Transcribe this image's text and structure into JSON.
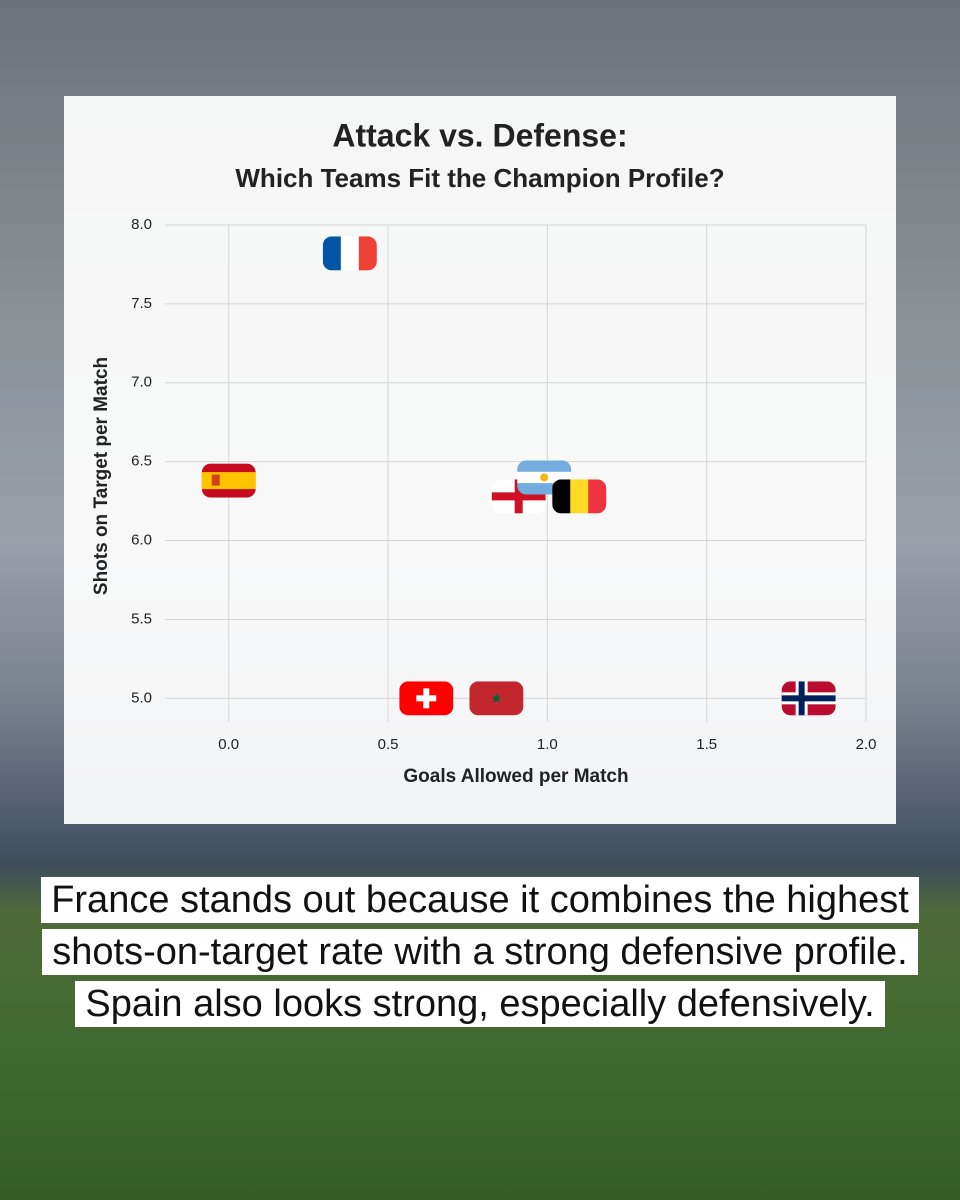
{
  "chart_data": {
    "type": "scatter",
    "title": "Attack vs. Defense:",
    "subtitle": "Which Teams Fit the Champion Profile?",
    "x_label": "Goals Allowed per Match",
    "y_label": "Shots on Target per Match",
    "x": [
      0.38,
      0.0,
      0.91,
      0.99,
      1.1,
      0.62,
      0.84,
      1.82
    ],
    "values": [
      7.82,
      6.38,
      6.28,
      6.4,
      6.28,
      5.0,
      5.0,
      5.0
    ],
    "markers": [
      {
        "kind": "vertical",
        "colors": [
          "#0055a4",
          "#ffffff",
          "#ef4135"
        ]
      },
      {
        "kind": "spain",
        "colors": [
          "#c60b1e",
          "#ffc400"
        ]
      },
      {
        "kind": "cross",
        "colors": [
          "#ffffff",
          "#ce1124"
        ]
      },
      {
        "kind": "horizontal",
        "colors": [
          "#74acdf",
          "#ffffff",
          "#74acdf"
        ]
      },
      {
        "kind": "vertical",
        "colors": [
          "#000000",
          "#fdda24",
          "#ef3340"
        ]
      },
      {
        "kind": "swiss",
        "colors": [
          "#ff0000",
          "#ffffff"
        ]
      },
      {
        "kind": "star",
        "colors": [
          "#c1272d",
          "#006233"
        ]
      },
      {
        "kind": "nordic",
        "colors": [
          "#ba0c2f",
          "#ffffff",
          "#00205b"
        ]
      }
    ],
    "xlim": [
      -0.2,
      2.0
    ],
    "ylim": [
      4.85,
      8.0
    ],
    "xticks": [
      {
        "value": 0,
        "label": "0.0"
      },
      0.5,
      {
        "value": 1,
        "label": "1.0"
      },
      1.5,
      {
        "value": 2,
        "label": "2.0"
      }
    ],
    "yticks": [
      {
        "value": 5,
        "label": "5.0"
      },
      5.5,
      {
        "value": 6,
        "label": "6.0"
      },
      6.5,
      {
        "value": 7,
        "label": "7.0"
      },
      7.5,
      {
        "value": 8,
        "label": "8.0"
      }
    ],
    "grid": true
  },
  "caption": "France stands out because it combines the highest shots-on-target rate with a strong defensive profile. Spain also looks strong, especially defensively."
}
